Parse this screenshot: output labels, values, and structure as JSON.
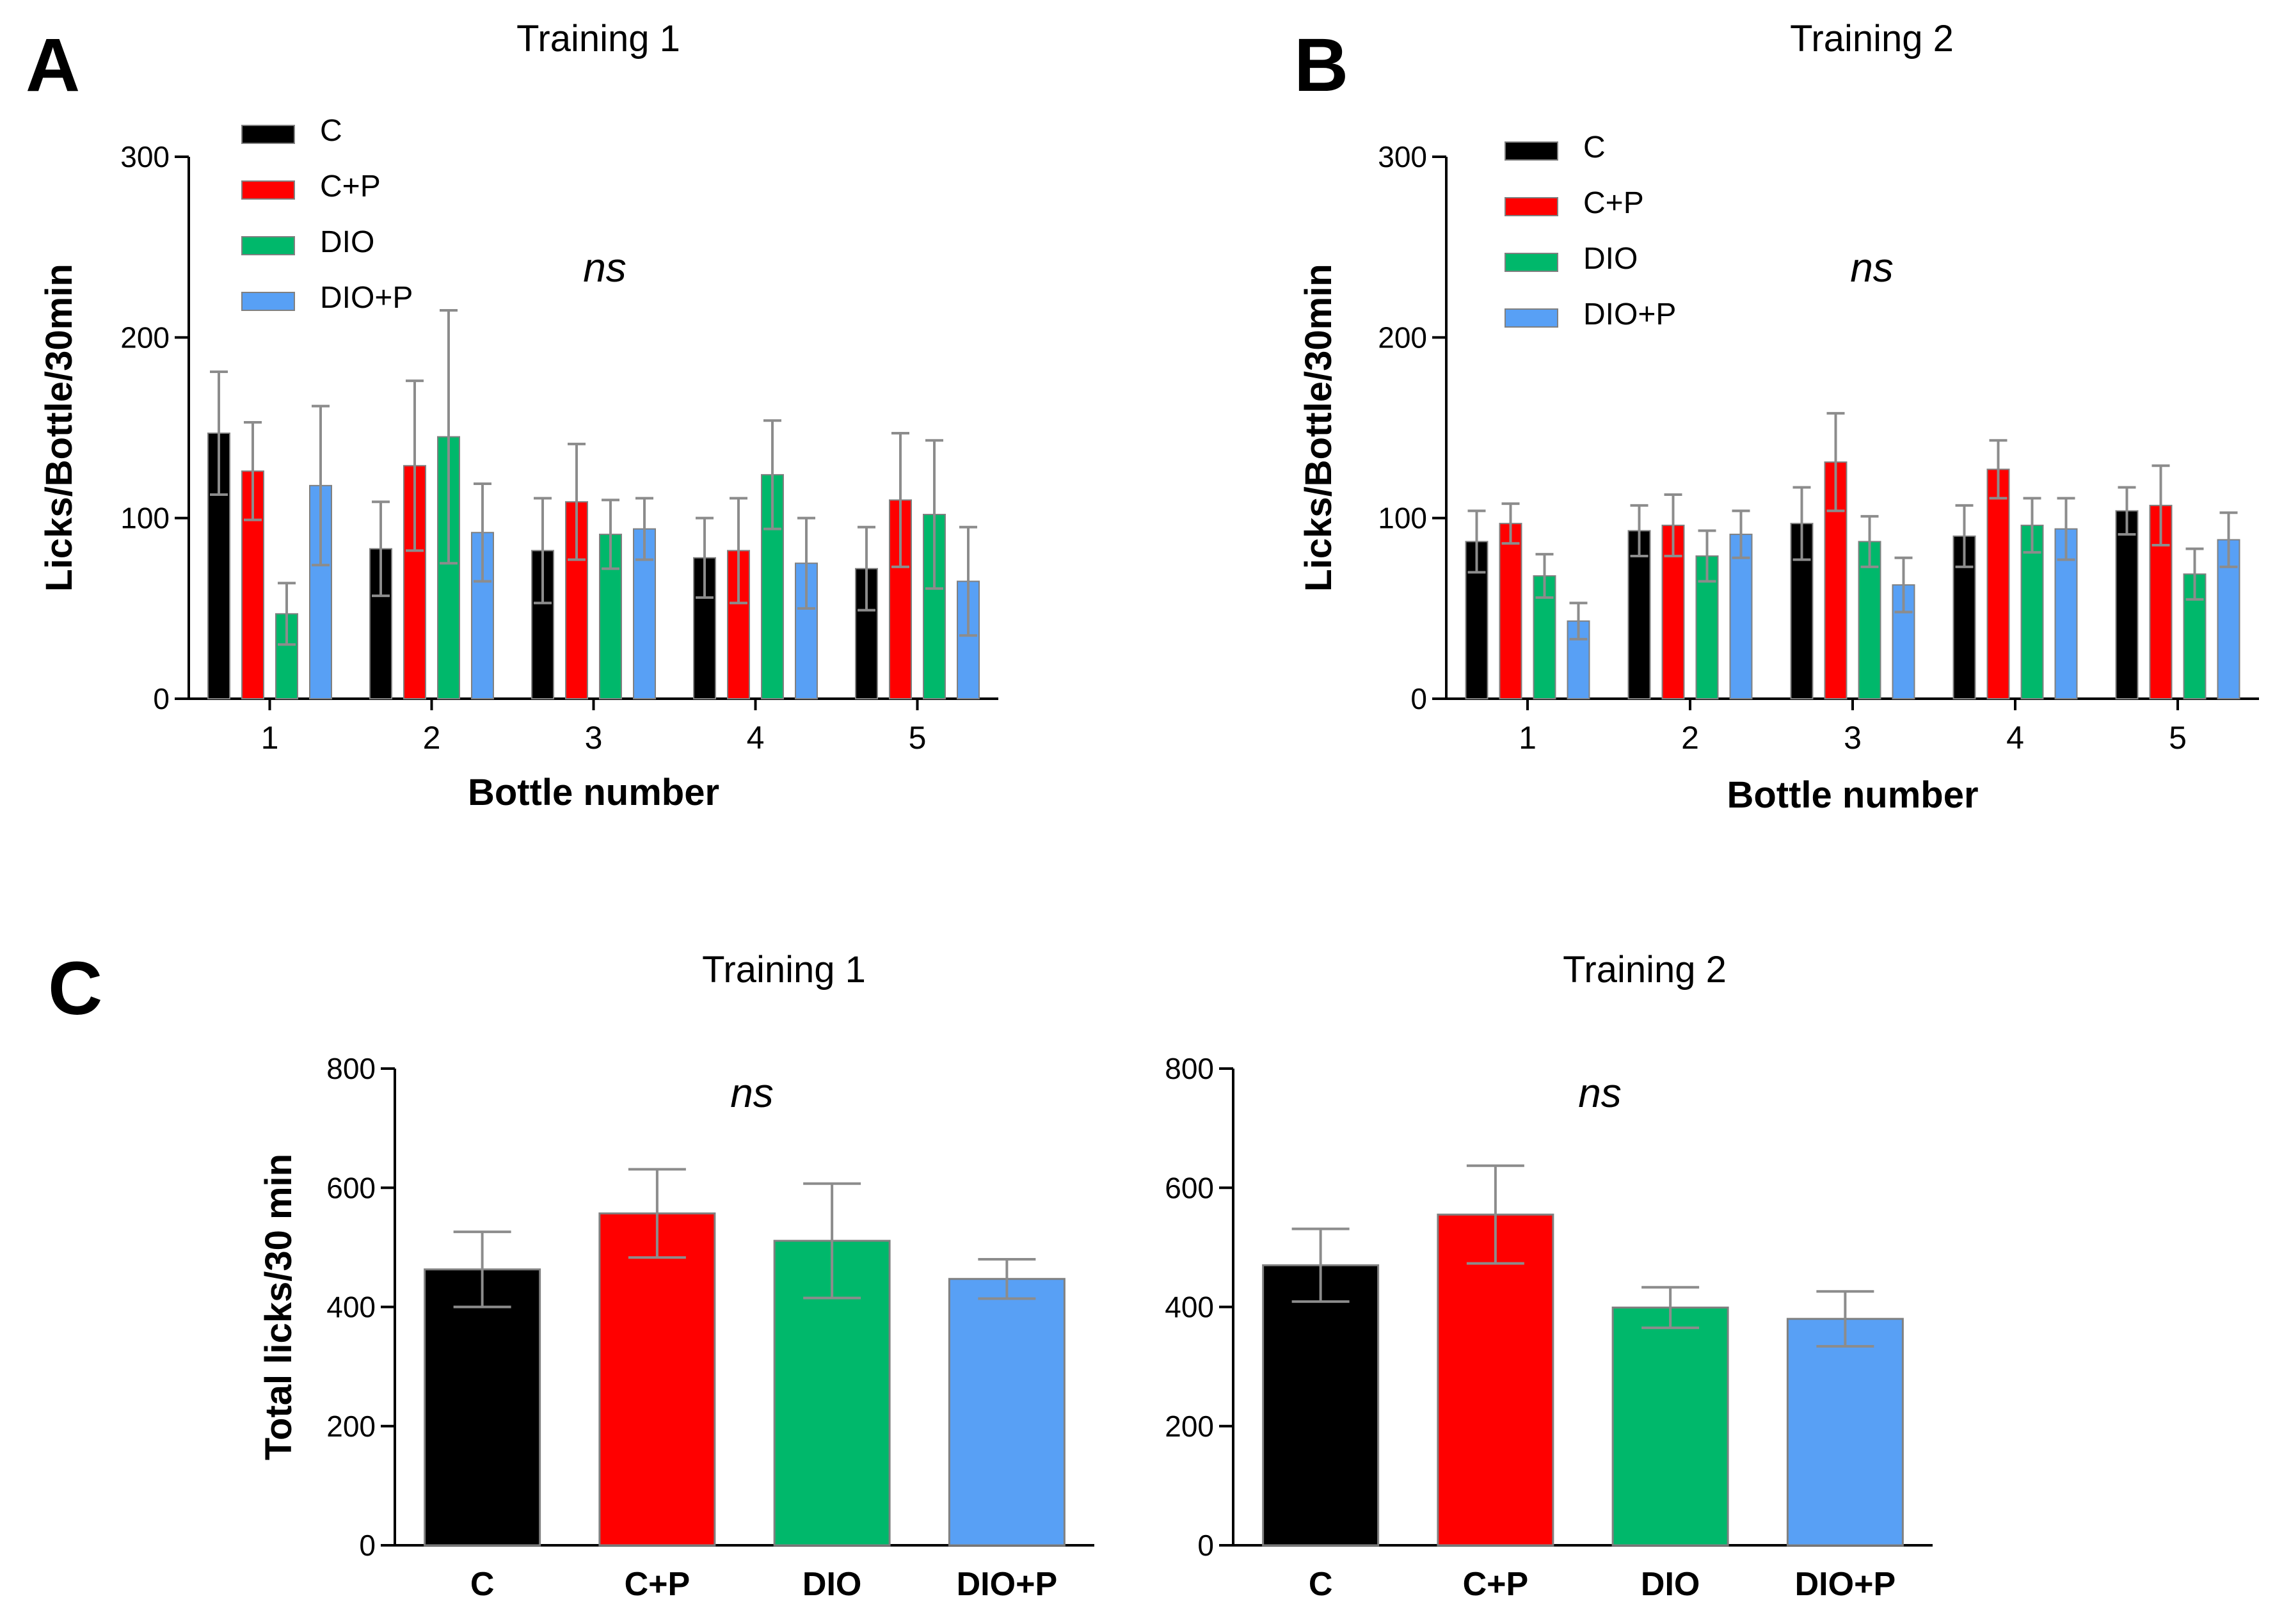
{
  "series_colors": {
    "C": "#000000",
    "C+P": "#ff0000",
    "DIO": "#00b86b",
    "DIO+P": "#58a0f5"
  },
  "chart_data": [
    {
      "panel": "A",
      "type": "bar",
      "title": "Training 1",
      "annotation": "ns",
      "xlabel": "Bottle number",
      "ylabel": "Licks/Bottle/30min",
      "ylim": [
        0,
        300
      ],
      "yticks": [
        "0",
        "100",
        "200",
        "300"
      ],
      "categories": [
        "1",
        "2",
        "3",
        "4",
        "5"
      ],
      "legend": [
        "C",
        "C+P",
        "DIO",
        "DIO+P"
      ],
      "legend_position": "top-left",
      "series": [
        {
          "name": "C",
          "values": [
            147,
            83,
            82,
            78,
            72
          ],
          "errors": [
            34,
            26,
            29,
            22,
            23
          ]
        },
        {
          "name": "C+P",
          "values": [
            126,
            129,
            109,
            82,
            110
          ],
          "errors": [
            27,
            47,
            32,
            29,
            37
          ]
        },
        {
          "name": "DIO",
          "values": [
            47,
            145,
            91,
            124,
            102
          ],
          "errors": [
            17,
            70,
            19,
            30,
            41
          ]
        },
        {
          "name": "DIO+P",
          "values": [
            118,
            92,
            94,
            75,
            65
          ],
          "errors": [
            44,
            27,
            17,
            25,
            30
          ]
        }
      ]
    },
    {
      "panel": "B",
      "type": "bar",
      "title": "Training 2",
      "annotation": "ns",
      "xlabel": "Bottle number",
      "ylabel": "Licks/Bottle/30min",
      "ylim": [
        0,
        300
      ],
      "yticks": [
        "0",
        "100",
        "200",
        "300"
      ],
      "categories": [
        "1",
        "2",
        "3",
        "4",
        "5"
      ],
      "legend": [
        "C",
        "C+P",
        "DIO",
        "DIO+P"
      ],
      "legend_position": "top-left",
      "series": [
        {
          "name": "C",
          "values": [
            87,
            93,
            97,
            90,
            104
          ],
          "errors": [
            17,
            14,
            20,
            17,
            13
          ]
        },
        {
          "name": "C+P",
          "values": [
            97,
            96,
            131,
            127,
            107
          ],
          "errors": [
            11,
            17,
            27,
            16,
            22
          ]
        },
        {
          "name": "DIO",
          "values": [
            68,
            79,
            87,
            96,
            69
          ],
          "errors": [
            12,
            14,
            14,
            15,
            14
          ]
        },
        {
          "name": "DIO+P",
          "values": [
            43,
            91,
            63,
            94,
            88
          ],
          "errors": [
            10,
            13,
            15,
            17,
            15
          ]
        }
      ]
    },
    {
      "panel": "C",
      "type": "bar",
      "title": "Training 1",
      "annotation": "ns",
      "xlabel": "",
      "ylabel": "Total licks/30 min",
      "ylim": [
        0,
        800
      ],
      "yticks": [
        "0",
        "200",
        "400",
        "600",
        "800"
      ],
      "categories": [
        "C",
        "C+P",
        "DIO",
        "DIO+P"
      ],
      "series": [
        {
          "values": [
            463,
            557,
            511,
            447
          ],
          "errors": [
            63,
            74,
            96,
            33
          ]
        }
      ]
    },
    {
      "panel": "",
      "type": "bar",
      "title": "Training 2",
      "annotation": "ns",
      "xlabel": "",
      "ylabel": "",
      "ylim": [
        0,
        800
      ],
      "yticks": [
        "0",
        "200",
        "400",
        "600",
        "800"
      ],
      "categories": [
        "C",
        "C+P",
        "DIO",
        "DIO+P"
      ],
      "series": [
        {
          "values": [
            470,
            555,
            399,
            380
          ],
          "errors": [
            61,
            82,
            34,
            46
          ]
        }
      ]
    }
  ]
}
